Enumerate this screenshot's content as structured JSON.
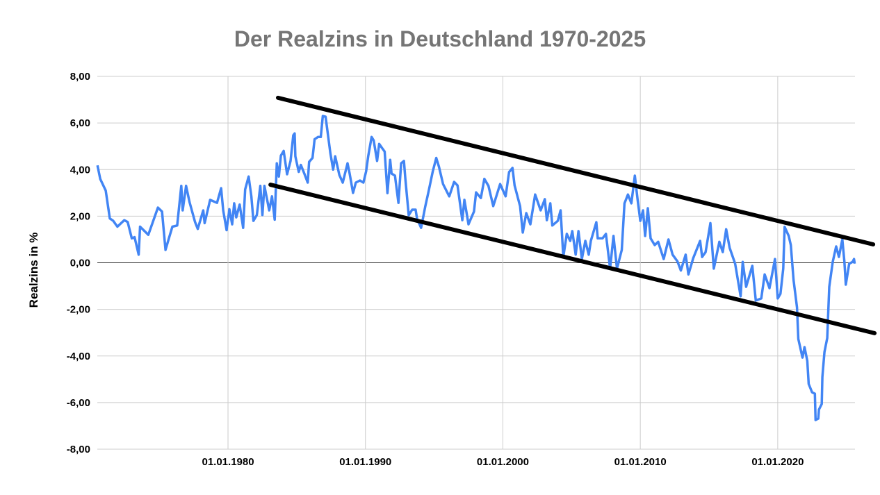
{
  "chart_data": {
    "type": "line",
    "title": "Der Realzins in Deutschland 1970-2025",
    "xlabel": "",
    "ylabel": "Realzins in %",
    "xlim": [
      1970.49,
      2025.62
    ],
    "ylim": [
      -8,
      8
    ],
    "grid": true,
    "legend": "none",
    "y_ticks": [
      {
        "value": 8,
        "label": "8,00"
      },
      {
        "value": 6,
        "label": "6,00"
      },
      {
        "value": 4,
        "label": "4,00"
      },
      {
        "value": 2,
        "label": "2,00"
      },
      {
        "value": 0,
        "label": "0,00"
      },
      {
        "value": -2,
        "label": "-2,00"
      },
      {
        "value": -4,
        "label": "-4,00"
      },
      {
        "value": -6,
        "label": "-6,00"
      },
      {
        "value": -8,
        "label": "-8,00"
      }
    ],
    "x_ticks": [
      {
        "value": 1980,
        "label": "01.01.1980"
      },
      {
        "value": 1990,
        "label": "01.01.1990"
      },
      {
        "value": 2000,
        "label": "01.01.2000"
      },
      {
        "value": 2010,
        "label": "01.01.2010"
      },
      {
        "value": 2020,
        "label": "01.01.2020"
      }
    ],
    "series": [
      {
        "name": "Realzins",
        "color": "#4285f4",
        "points": [
          [
            1970.5,
            4.18
          ],
          [
            1970.7,
            3.6
          ],
          [
            1971.1,
            3.1
          ],
          [
            1971.4,
            1.9
          ],
          [
            1971.65,
            1.8
          ],
          [
            1971.95,
            1.55
          ],
          [
            1972.45,
            1.83
          ],
          [
            1972.7,
            1.75
          ],
          [
            1973.0,
            1.05
          ],
          [
            1973.2,
            1.1
          ],
          [
            1973.5,
            0.35
          ],
          [
            1973.6,
            1.55
          ],
          [
            1974.2,
            1.2
          ],
          [
            1974.5,
            1.7
          ],
          [
            1974.9,
            2.37
          ],
          [
            1975.2,
            2.2
          ],
          [
            1975.45,
            0.55
          ],
          [
            1975.7,
            1.05
          ],
          [
            1975.95,
            1.55
          ],
          [
            1976.3,
            1.6
          ],
          [
            1976.6,
            3.3
          ],
          [
            1976.7,
            2.25
          ],
          [
            1976.95,
            3.3
          ],
          [
            1977.2,
            2.6
          ],
          [
            1977.6,
            1.75
          ],
          [
            1977.8,
            1.45
          ],
          [
            1978.2,
            2.25
          ],
          [
            1978.3,
            1.7
          ],
          [
            1978.7,
            2.7
          ],
          [
            1979.2,
            2.57
          ],
          [
            1979.5,
            3.2
          ],
          [
            1979.65,
            2.25
          ],
          [
            1979.9,
            1.4
          ],
          [
            1980.1,
            2.3
          ],
          [
            1980.3,
            1.65
          ],
          [
            1980.45,
            2.55
          ],
          [
            1980.6,
            1.95
          ],
          [
            1980.85,
            2.5
          ],
          [
            1981.1,
            1.5
          ],
          [
            1981.25,
            3.15
          ],
          [
            1981.5,
            3.7
          ],
          [
            1981.7,
            2.85
          ],
          [
            1981.85,
            1.8
          ],
          [
            1982.1,
            2.05
          ],
          [
            1982.35,
            3.3
          ],
          [
            1982.5,
            2.05
          ],
          [
            1982.65,
            3.3
          ],
          [
            1983.0,
            2.25
          ],
          [
            1983.2,
            2.85
          ],
          [
            1983.4,
            1.85
          ],
          [
            1983.55,
            4.27
          ],
          [
            1983.7,
            3.7
          ],
          [
            1983.85,
            4.6
          ],
          [
            1984.05,
            4.8
          ],
          [
            1984.3,
            3.8
          ],
          [
            1984.55,
            4.37
          ],
          [
            1984.75,
            5.47
          ],
          [
            1984.85,
            5.55
          ],
          [
            1984.9,
            4.57
          ],
          [
            1985.15,
            3.9
          ],
          [
            1985.3,
            4.2
          ],
          [
            1985.55,
            3.83
          ],
          [
            1985.8,
            3.44
          ],
          [
            1985.9,
            4.33
          ],
          [
            1986.15,
            4.5
          ],
          [
            1986.3,
            5.3
          ],
          [
            1986.55,
            5.4
          ],
          [
            1986.75,
            5.4
          ],
          [
            1986.9,
            6.3
          ],
          [
            1987.1,
            6.27
          ],
          [
            1987.45,
            4.7
          ],
          [
            1987.65,
            4.0
          ],
          [
            1987.8,
            4.57
          ],
          [
            1988.1,
            3.77
          ],
          [
            1988.35,
            3.44
          ],
          [
            1988.7,
            4.27
          ],
          [
            1988.85,
            3.83
          ],
          [
            1989.1,
            3.0
          ],
          [
            1989.3,
            3.44
          ],
          [
            1989.6,
            3.53
          ],
          [
            1989.85,
            3.44
          ],
          [
            1990.05,
            3.92
          ],
          [
            1990.2,
            4.57
          ],
          [
            1990.45,
            5.4
          ],
          [
            1990.6,
            5.25
          ],
          [
            1990.85,
            4.37
          ],
          [
            1991.0,
            5.1
          ],
          [
            1991.2,
            4.93
          ],
          [
            1991.4,
            4.77
          ],
          [
            1991.6,
            2.99
          ],
          [
            1991.8,
            4.42
          ],
          [
            1991.9,
            3.83
          ],
          [
            1992.15,
            3.74
          ],
          [
            1992.4,
            2.57
          ],
          [
            1992.6,
            4.27
          ],
          [
            1992.8,
            4.37
          ],
          [
            1992.9,
            3.62
          ],
          [
            1993.15,
            2.04
          ],
          [
            1993.4,
            2.28
          ],
          [
            1993.65,
            2.28
          ],
          [
            1993.75,
            1.9
          ],
          [
            1994.05,
            1.5
          ],
          [
            1994.35,
            2.4
          ],
          [
            1994.6,
            3.08
          ],
          [
            1994.9,
            3.92
          ],
          [
            1995.15,
            4.5
          ],
          [
            1995.35,
            4.12
          ],
          [
            1995.65,
            3.38
          ],
          [
            1996.1,
            2.85
          ],
          [
            1996.45,
            3.47
          ],
          [
            1996.7,
            3.32
          ],
          [
            1997.05,
            1.83
          ],
          [
            1997.2,
            2.7
          ],
          [
            1997.5,
            1.65
          ],
          [
            1997.9,
            2.2
          ],
          [
            1998.05,
            3.02
          ],
          [
            1998.4,
            2.78
          ],
          [
            1998.65,
            3.6
          ],
          [
            1998.95,
            3.3
          ],
          [
            1999.3,
            2.43
          ],
          [
            1999.8,
            3.38
          ],
          [
            2000.2,
            2.85
          ],
          [
            2000.45,
            3.89
          ],
          [
            2000.7,
            4.07
          ],
          [
            2000.85,
            3.32
          ],
          [
            2001.25,
            2.43
          ],
          [
            2001.45,
            1.3
          ],
          [
            2001.7,
            2.13
          ],
          [
            2002.0,
            1.65
          ],
          [
            2002.35,
            2.93
          ],
          [
            2002.75,
            2.25
          ],
          [
            2003.05,
            2.73
          ],
          [
            2003.2,
            1.83
          ],
          [
            2003.45,
            2.55
          ],
          [
            2003.6,
            1.6
          ],
          [
            2004.0,
            1.8
          ],
          [
            2004.2,
            2.25
          ],
          [
            2004.4,
            0.25
          ],
          [
            2004.65,
            1.24
          ],
          [
            2004.9,
            0.94
          ],
          [
            2005.05,
            1.36
          ],
          [
            2005.3,
            0.35
          ],
          [
            2005.5,
            1.36
          ],
          [
            2005.75,
            0.16
          ],
          [
            2006.0,
            0.94
          ],
          [
            2006.25,
            0.35
          ],
          [
            2006.4,
            0.94
          ],
          [
            2006.8,
            1.74
          ],
          [
            2006.9,
            1.05
          ],
          [
            2007.25,
            1.05
          ],
          [
            2007.5,
            1.24
          ],
          [
            2007.8,
            -0.25
          ],
          [
            2008.05,
            1.15
          ],
          [
            2008.3,
            -0.25
          ],
          [
            2008.65,
            0.55
          ],
          [
            2008.85,
            2.55
          ],
          [
            2009.1,
            2.93
          ],
          [
            2009.35,
            2.55
          ],
          [
            2009.6,
            3.74
          ],
          [
            2009.8,
            2.73
          ],
          [
            2010.0,
            1.8
          ],
          [
            2010.2,
            2.25
          ],
          [
            2010.35,
            1.15
          ],
          [
            2010.55,
            2.34
          ],
          [
            2010.75,
            1.05
          ],
          [
            2011.05,
            0.76
          ],
          [
            2011.3,
            0.9
          ],
          [
            2011.7,
            0.16
          ],
          [
            2012.05,
            1.0
          ],
          [
            2012.35,
            0.35
          ],
          [
            2012.7,
            0.06
          ],
          [
            2012.95,
            -0.33
          ],
          [
            2013.3,
            0.35
          ],
          [
            2013.5,
            -0.5
          ],
          [
            2013.85,
            0.2
          ],
          [
            2014.35,
            0.94
          ],
          [
            2014.5,
            0.25
          ],
          [
            2014.75,
            0.46
          ],
          [
            2015.1,
            1.7
          ],
          [
            2015.35,
            -0.25
          ],
          [
            2015.75,
            0.9
          ],
          [
            2016.0,
            0.46
          ],
          [
            2016.25,
            1.44
          ],
          [
            2016.5,
            0.64
          ],
          [
            2016.9,
            -0.04
          ],
          [
            2017.3,
            -1.44
          ],
          [
            2017.45,
            0.04
          ],
          [
            2017.7,
            -1.03
          ],
          [
            2018.15,
            -0.13
          ],
          [
            2018.4,
            -1.62
          ],
          [
            2018.8,
            -1.53
          ],
          [
            2019.05,
            -0.5
          ],
          [
            2019.4,
            -1.09
          ],
          [
            2019.8,
            0.16
          ],
          [
            2020.0,
            -1.53
          ],
          [
            2020.2,
            -1.33
          ],
          [
            2020.4,
            -0.25
          ],
          [
            2020.5,
            1.54
          ],
          [
            2020.8,
            1.15
          ],
          [
            2020.95,
            0.76
          ],
          [
            2021.15,
            -0.73
          ],
          [
            2021.4,
            -1.92
          ],
          [
            2021.5,
            -3.27
          ],
          [
            2021.8,
            -4.07
          ],
          [
            2021.95,
            -3.62
          ],
          [
            2022.15,
            -4.21
          ],
          [
            2022.25,
            -5.2
          ],
          [
            2022.5,
            -5.56
          ],
          [
            2022.7,
            -5.62
          ],
          [
            2022.75,
            -6.75
          ],
          [
            2022.95,
            -6.69
          ],
          [
            2023.0,
            -6.3
          ],
          [
            2023.2,
            -6.06
          ],
          [
            2023.25,
            -4.9
          ],
          [
            2023.4,
            -3.83
          ],
          [
            2023.6,
            -3.23
          ],
          [
            2023.75,
            -1.03
          ],
          [
            2024.0,
            0.04
          ],
          [
            2024.25,
            0.7
          ],
          [
            2024.45,
            0.25
          ],
          [
            2024.7,
            1.0
          ],
          [
            2024.85,
            0.04
          ],
          [
            2024.95,
            -0.94
          ],
          [
            2025.2,
            -0.04
          ],
          [
            2025.45,
            0.04
          ],
          [
            2025.55,
            0.16
          ],
          [
            2025.6,
            -0.04
          ]
        ]
      }
    ],
    "annotations": [
      {
        "name": "upper-trend-line",
        "type": "line",
        "color": "#000000",
        "points": [
          [
            1983.64,
            7.08
          ],
          [
            2026.94,
            0.79
          ]
        ]
      },
      {
        "name": "lower-trend-line",
        "type": "line",
        "color": "#000000",
        "points": [
          [
            1983.09,
            3.35
          ],
          [
            2027.04,
            -3.02
          ]
        ]
      }
    ]
  }
}
